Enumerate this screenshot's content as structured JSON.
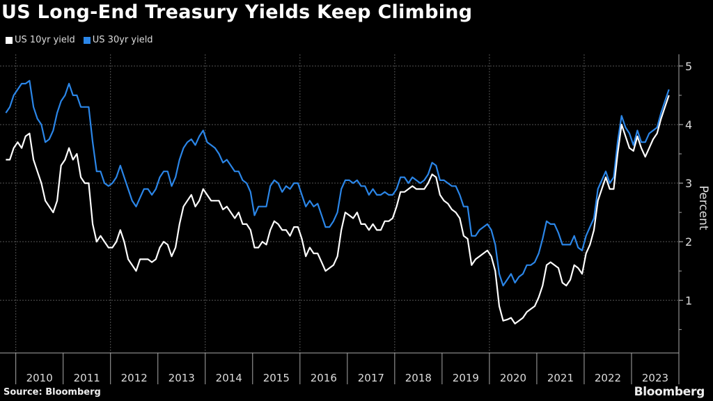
{
  "chart_data": {
    "type": "line",
    "title": "US Long-End Treasury Yields Keep Climbing",
    "ylabel": "Percent",
    "xlabel": "",
    "ylim": [
      0.1,
      5.2
    ],
    "yticks": [
      1,
      2,
      3,
      4,
      5
    ],
    "xlim": [
      "2009-09",
      "2024-01"
    ],
    "xtick_labels": [
      "2010",
      "2011",
      "2012",
      "2013",
      "2014",
      "2015",
      "2016",
      "2017",
      "2018",
      "2019",
      "2020",
      "2021",
      "2022",
      "2023"
    ],
    "grid": true,
    "legend_position": "top-left",
    "start_month": "2009-10",
    "series": [
      {
        "name": "US 10yr yield",
        "color": "#ffffff",
        "values": [
          3.4,
          3.4,
          3.6,
          3.7,
          3.6,
          3.8,
          3.85,
          3.4,
          3.2,
          3.0,
          2.7,
          2.6,
          2.5,
          2.7,
          3.3,
          3.4,
          3.6,
          3.4,
          3.5,
          3.1,
          3.0,
          3.0,
          2.3,
          2.0,
          2.1,
          2.0,
          1.9,
          1.9,
          2.0,
          2.2,
          2.0,
          1.7,
          1.6,
          1.5,
          1.7,
          1.7,
          1.7,
          1.65,
          1.7,
          1.9,
          2.0,
          1.95,
          1.75,
          1.9,
          2.3,
          2.6,
          2.7,
          2.8,
          2.6,
          2.7,
          2.9,
          2.8,
          2.7,
          2.7,
          2.7,
          2.55,
          2.6,
          2.5,
          2.4,
          2.5,
          2.3,
          2.3,
          2.2,
          1.9,
          1.9,
          2.0,
          1.95,
          2.2,
          2.35,
          2.3,
          2.2,
          2.2,
          2.1,
          2.25,
          2.25,
          2.05,
          1.75,
          1.9,
          1.8,
          1.8,
          1.65,
          1.5,
          1.55,
          1.6,
          1.75,
          2.2,
          2.5,
          2.45,
          2.4,
          2.5,
          2.3,
          2.3,
          2.2,
          2.3,
          2.2,
          2.2,
          2.35,
          2.35,
          2.4,
          2.6,
          2.85,
          2.85,
          2.9,
          2.95,
          2.9,
          2.9,
          2.9,
          3.0,
          3.15,
          3.1,
          2.8,
          2.7,
          2.65,
          2.55,
          2.5,
          2.4,
          2.1,
          2.05,
          1.6,
          1.7,
          1.75,
          1.8,
          1.85,
          1.75,
          1.5,
          0.9,
          0.65,
          0.67,
          0.7,
          0.6,
          0.65,
          0.7,
          0.8,
          0.85,
          0.9,
          1.05,
          1.25,
          1.6,
          1.65,
          1.6,
          1.55,
          1.3,
          1.25,
          1.35,
          1.6,
          1.55,
          1.45,
          1.8,
          1.95,
          2.2,
          2.7,
          2.9,
          3.1,
          2.9,
          2.9,
          3.5,
          4.0,
          3.8,
          3.6,
          3.55,
          3.8,
          3.6,
          3.45,
          3.6,
          3.75,
          3.85,
          4.1,
          4.3,
          4.5
        ]
      },
      {
        "name": "US 30yr yield",
        "color": "#2b86e8",
        "values": [
          4.2,
          4.3,
          4.5,
          4.6,
          4.7,
          4.7,
          4.75,
          4.3,
          4.1,
          4.0,
          3.7,
          3.75,
          3.9,
          4.2,
          4.4,
          4.5,
          4.7,
          4.5,
          4.5,
          4.3,
          4.3,
          4.3,
          3.7,
          3.2,
          3.2,
          3.0,
          2.95,
          3.0,
          3.1,
          3.3,
          3.1,
          2.9,
          2.7,
          2.6,
          2.75,
          2.9,
          2.9,
          2.8,
          2.9,
          3.1,
          3.2,
          3.2,
          2.95,
          3.1,
          3.4,
          3.6,
          3.7,
          3.75,
          3.65,
          3.8,
          3.9,
          3.7,
          3.65,
          3.6,
          3.5,
          3.35,
          3.4,
          3.3,
          3.2,
          3.2,
          3.05,
          3.0,
          2.85,
          2.45,
          2.6,
          2.6,
          2.6,
          2.95,
          3.05,
          3.0,
          2.85,
          2.95,
          2.9,
          3.0,
          3.0,
          2.8,
          2.6,
          2.7,
          2.6,
          2.65,
          2.45,
          2.25,
          2.25,
          2.35,
          2.5,
          2.9,
          3.05,
          3.05,
          3.0,
          3.05,
          2.95,
          2.95,
          2.8,
          2.9,
          2.8,
          2.8,
          2.85,
          2.8,
          2.8,
          2.9,
          3.1,
          3.1,
          3.0,
          3.1,
          3.05,
          3.0,
          3.05,
          3.15,
          3.35,
          3.3,
          3.05,
          3.05,
          3.0,
          2.95,
          2.95,
          2.8,
          2.6,
          2.6,
          2.1,
          2.1,
          2.2,
          2.25,
          2.3,
          2.2,
          1.95,
          1.45,
          1.25,
          1.35,
          1.45,
          1.3,
          1.4,
          1.45,
          1.6,
          1.6,
          1.65,
          1.8,
          2.05,
          2.35,
          2.3,
          2.3,
          2.15,
          1.95,
          1.95,
          1.95,
          2.1,
          1.9,
          1.85,
          2.1,
          2.25,
          2.4,
          2.9,
          3.05,
          3.2,
          3.0,
          3.1,
          3.7,
          4.15,
          3.95,
          3.85,
          3.65,
          3.9,
          3.7,
          3.7,
          3.85,
          3.9,
          3.95,
          4.2,
          4.4,
          4.6
        ]
      }
    ]
  },
  "source": "Source: Bloomberg",
  "brand": "Bloomberg"
}
